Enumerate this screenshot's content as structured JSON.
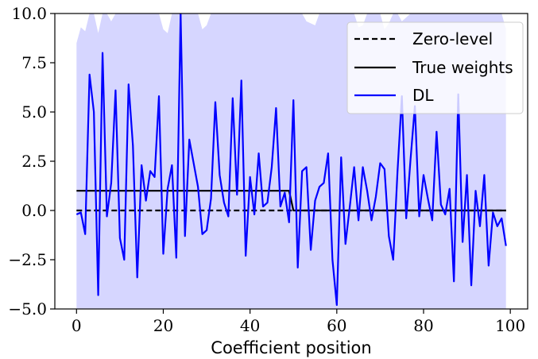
{
  "chart_data": {
    "type": "line",
    "xlabel": "Coefficient position",
    "ylabel": "",
    "title": "",
    "xlim": [
      -5,
      104
    ],
    "ylim": [
      -5.0,
      10.0
    ],
    "xticks": [
      0,
      20,
      40,
      60,
      80,
      100
    ],
    "yticks": [
      -5.0,
      -2.5,
      0.0,
      2.5,
      5.0,
      7.5,
      10.0
    ],
    "xtick_labels": [
      "0",
      "20",
      "40",
      "60",
      "80",
      "100"
    ],
    "ytick_labels": [
      "−5.0",
      "−2.5",
      "0.0",
      "2.5",
      "5.0",
      "7.5",
      "10.0"
    ],
    "grid": false,
    "legend_position": "top-right",
    "legend": [
      "Zero-level",
      "True weights",
      "DL"
    ],
    "colors": {
      "zero_level": "#000000",
      "true_weights": "#000000",
      "dl": "#0000ff",
      "band": "#d6d6ff"
    },
    "series": [
      {
        "name": "Zero-level",
        "style": "dashed",
        "x": [
          0,
          99
        ],
        "y": [
          0,
          0
        ]
      },
      {
        "name": "True weights",
        "style": "solid",
        "x": [
          0,
          1,
          2,
          3,
          4,
          5,
          6,
          7,
          8,
          9,
          10,
          11,
          12,
          13,
          14,
          15,
          16,
          17,
          18,
          19,
          20,
          21,
          22,
          23,
          24,
          25,
          26,
          27,
          28,
          29,
          30,
          31,
          32,
          33,
          34,
          35,
          36,
          37,
          38,
          39,
          40,
          41,
          42,
          43,
          44,
          45,
          46,
          47,
          48,
          49,
          50,
          51,
          99
        ],
        "y": [
          1,
          1,
          1,
          1,
          1,
          1,
          1,
          1,
          1,
          1,
          1,
          1,
          1,
          1,
          1,
          1,
          1,
          1,
          1,
          1,
          1,
          1,
          1,
          1,
          1,
          1,
          1,
          1,
          1,
          1,
          1,
          1,
          1,
          1,
          1,
          1,
          1,
          1,
          1,
          1,
          1,
          1,
          1,
          1,
          1,
          1,
          1,
          1,
          1,
          1,
          0,
          0,
          0
        ]
      },
      {
        "name": "DL",
        "style": "solid",
        "x": [
          0,
          1,
          2,
          3,
          4,
          5,
          6,
          7,
          8,
          9,
          10,
          11,
          12,
          13,
          14,
          15,
          16,
          17,
          18,
          19,
          20,
          21,
          22,
          23,
          24,
          25,
          26,
          27,
          28,
          29,
          30,
          31,
          32,
          33,
          34,
          35,
          36,
          37,
          38,
          39,
          40,
          41,
          42,
          43,
          44,
          45,
          46,
          47,
          48,
          49,
          50,
          51,
          52,
          53,
          54,
          55,
          56,
          57,
          58,
          59,
          60,
          61,
          62,
          63,
          64,
          65,
          66,
          67,
          68,
          69,
          70,
          71,
          72,
          73,
          74,
          75,
          76,
          77,
          78,
          79,
          80,
          81,
          82,
          83,
          84,
          85,
          86,
          87,
          88,
          89,
          90,
          91,
          92,
          93,
          94,
          95,
          96,
          97,
          98,
          99
        ],
        "y": [
          -0.2,
          -0.1,
          -1.2,
          6.9,
          5.0,
          -4.3,
          8.0,
          -0.3,
          1.4,
          6.1,
          -1.4,
          -2.5,
          6.4,
          3.3,
          -3.4,
          2.3,
          0.5,
          2.0,
          1.7,
          5.8,
          -2.2,
          1.1,
          2.3,
          -2.4,
          10.0,
          -1.3,
          3.6,
          2.4,
          1.2,
          -1.2,
          -1.0,
          0.6,
          5.5,
          1.8,
          0.4,
          -0.3,
          5.7,
          0.8,
          6.6,
          -2.3,
          1.7,
          -0.2,
          2.9,
          0.2,
          0.4,
          2.2,
          5.2,
          0.2,
          0.9,
          -0.6,
          5.6,
          -2.9,
          2.0,
          2.2,
          -2.0,
          0.5,
          1.2,
          1.4,
          2.9,
          -2.5,
          -4.8,
          2.7,
          -1.7,
          0.2,
          2.2,
          -0.5,
          2.2,
          1.0,
          -0.5,
          0.7,
          2.4,
          2.1,
          -1.3,
          -2.5,
          2.0,
          5.8,
          -0.4,
          2.6,
          5.3,
          -0.3,
          1.8,
          0.6,
          -0.5,
          4.0,
          0.3,
          -0.2,
          1.1,
          -3.6,
          5.9,
          -1.6,
          1.8,
          -3.8,
          1.0,
          -0.8,
          1.8,
          -2.8,
          -0.1,
          -0.8,
          -0.4,
          -1.8
        ]
      }
    ],
    "band": {
      "x": [
        0,
        1,
        2,
        3,
        4,
        5,
        6,
        7,
        8,
        9,
        10,
        11,
        12,
        13,
        14,
        15,
        16,
        17,
        18,
        19,
        20,
        21,
        22,
        23,
        24,
        25,
        26,
        27,
        28,
        29,
        30,
        31,
        32,
        33,
        34,
        35,
        36,
        37,
        38,
        39,
        40,
        41,
        42,
        43,
        44,
        45,
        46,
        47,
        48,
        49,
        50,
        51,
        52,
        53,
        54,
        55,
        56,
        57,
        58,
        59,
        60,
        61,
        62,
        63,
        64,
        65,
        66,
        67,
        68,
        69,
        70,
        71,
        72,
        73,
        74,
        75,
        76,
        77,
        78,
        79,
        80,
        81,
        82,
        83,
        84,
        85,
        86,
        87,
        88,
        89,
        90,
        91,
        92,
        93,
        94,
        95,
        96,
        97,
        98,
        99
      ],
      "upper": [
        8.5,
        9.3,
        9.1,
        10.0,
        10.0,
        9.0,
        10.0,
        10.0,
        9.6,
        10.0,
        10.0,
        10.0,
        10.0,
        10.0,
        10.0,
        10.0,
        10.0,
        10.0,
        10.0,
        10.0,
        9.2,
        9.0,
        10.0,
        10.0,
        10.0,
        10.0,
        10.0,
        10.0,
        10.0,
        9.2,
        9.4,
        10.0,
        10.0,
        10.0,
        10.0,
        10.0,
        10.0,
        10.0,
        10.0,
        10.0,
        10.0,
        10.0,
        10.0,
        10.0,
        10.0,
        10.0,
        10.0,
        10.0,
        10.0,
        10.0,
        10.0,
        10.0,
        10.0,
        9.6,
        9.5,
        9.4,
        10.0,
        10.0,
        10.0,
        10.0,
        10.0,
        10.0,
        10.0,
        10.0,
        10.0,
        9.3,
        9.4,
        10.0,
        10.0,
        10.0,
        10.0,
        9.2,
        9.5,
        10.0,
        10.0,
        9.6,
        9.8,
        10.0,
        10.0,
        10.0,
        10.0,
        10.0,
        10.0,
        10.0,
        10.0,
        10.0,
        10.0,
        10.0,
        10.0,
        10.0,
        10.0,
        10.0,
        10.0,
        10.0,
        10.0,
        10.0,
        10.0,
        10.0,
        10.0,
        9.2
      ],
      "lower": [
        -5.0,
        -5.0,
        -5.0,
        -5.0,
        -5.0,
        -5.0,
        -5.0,
        -5.0,
        -5.0,
        -5.0,
        -5.0,
        -5.0,
        -5.0,
        -5.0,
        -5.0,
        -5.0,
        -5.0,
        -5.0,
        -5.0,
        -5.0,
        -5.0,
        -5.0,
        -5.0,
        -5.0,
        -5.0,
        -5.0,
        -5.0,
        -5.0,
        -5.0,
        -5.0,
        -5.0,
        -5.0,
        -5.0,
        -5.0,
        -5.0,
        -5.0,
        -5.0,
        -5.0,
        -5.0,
        -5.0,
        -5.0,
        -5.0,
        -5.0,
        -5.0,
        -5.0,
        -5.0,
        -5.0,
        -5.0,
        -5.0,
        -5.0,
        -5.0,
        -5.0,
        -5.0,
        -5.0,
        -5.0,
        -5.0,
        -5.0,
        -5.0,
        -5.0,
        -5.0,
        -5.0,
        -5.0,
        -5.0,
        -5.0,
        -5.0,
        -5.0,
        -5.0,
        -5.0,
        -5.0,
        -5.0,
        -5.0,
        -5.0,
        -5.0,
        -5.0,
        -5.0,
        -5.0,
        -5.0,
        -5.0,
        -5.0,
        -5.0,
        -5.0,
        -5.0,
        -5.0,
        -5.0,
        -5.0,
        -5.0,
        -5.0,
        -5.0,
        -5.0,
        -5.0,
        -5.0,
        -5.0,
        -5.0,
        -5.0,
        -5.0,
        -5.0,
        -5.0,
        -5.0,
        -5.0,
        -5.0
      ]
    }
  }
}
